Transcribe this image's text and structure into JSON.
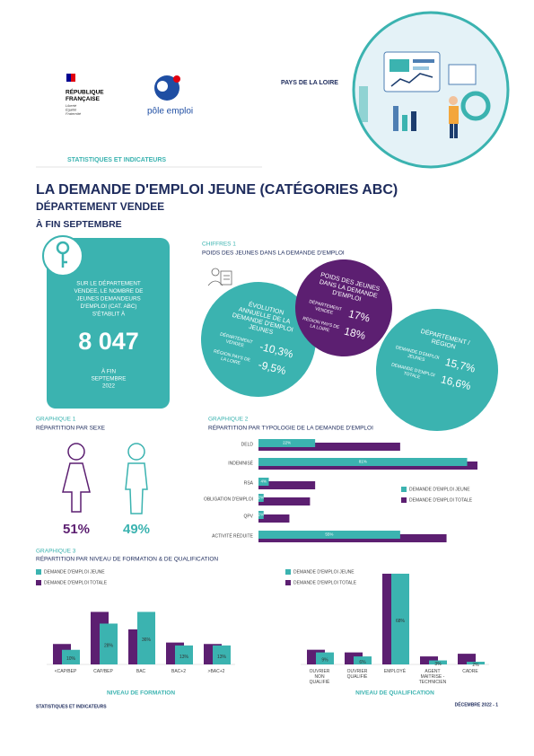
{
  "header": {
    "republique": [
      "RÉPUBLIQUE",
      "FRANÇAISE"
    ],
    "motto": [
      "Liberté",
      "Égalité",
      "Fraternité"
    ],
    "logo": "pôle emploi",
    "region": "PAYS DE LA LOIRE",
    "section": "STATISTIQUES ET INDICATEURS"
  },
  "title": "LA DEMANDE D'EMPLOI JEUNE (CATÉGORIES ABC)",
  "subtitle": "DÉPARTEMENT VENDEE",
  "period": "À FIN SEPTEMBRE",
  "key_figure": {
    "text": [
      "SUR LE DÉPARTEMENT",
      "VENDEE, LE NOMBRE DE",
      "JEUNES DEMANDEURS",
      "D'EMPLOI (CAT. ABC)",
      "S'ÉTABLIT À"
    ],
    "value": "8 047",
    "date": [
      "À FIN",
      "SEPTEMBRE",
      "2022"
    ]
  },
  "chiffres": {
    "label": "CHIFFRES 1",
    "title": "POIDS DES JEUNES DANS LA DEMANDE D'EMPLOI",
    "circles": [
      {
        "title": [
          "ÉVOLUTION",
          "ANNUELLE DE LA",
          "DEMANDE D'EMPLOI",
          "JEUNES"
        ],
        "rows": [
          {
            "label": [
              "DÉPARTEMENT",
              "VENDEE"
            ],
            "value": "-10,3%"
          },
          {
            "label": [
              "RÉGION PAYS DE",
              "LA LOIRE"
            ],
            "value": "-9,5%"
          }
        ]
      },
      {
        "title": [
          "POIDS DES JEUNES",
          "DANS LA DEMANDE",
          "D'EMPLOI"
        ],
        "rows": [
          {
            "label": [
              "DÉPARTEMENT",
              "VENDEE"
            ],
            "value": "17%"
          },
          {
            "label": [
              "RÉGION PAYS DE",
              "LA LOIRE"
            ],
            "value": "18%"
          }
        ]
      },
      {
        "title": [
          "DÉPARTEMENT /",
          "RÉGION"
        ],
        "rows": [
          {
            "label": [
              "DEMANDE D'EMPLOI",
              "JEUNES"
            ],
            "value": "15,7%"
          },
          {
            "label": [
              "DEMANDE D'EMPLOI",
              "TOTALE"
            ],
            "value": "16,6%"
          }
        ]
      }
    ]
  },
  "graph3": {
    "label": "GRAPHIQUE 3",
    "title": "RÉPARTITION PAR NIVEAU DE FORMATION & DE QUALIFICATION"
  },
  "chart_data": [
    {
      "type": "pictogram",
      "label": "GRAPHIQUE 1",
      "title": "RÉPARTITION PAR SEXE",
      "values": [
        51,
        49
      ],
      "value_labels": [
        "51%",
        "49%"
      ],
      "colors": [
        "#5c1f71",
        "#3bb3b0"
      ]
    },
    {
      "type": "bar",
      "orientation": "horizontal",
      "label": "GRAPHIQUE 2",
      "title": "RÉPARTITION PAR TYPOLOGIE DE LA DEMANDE D'EMPLOI",
      "categories": [
        "DELD",
        "INDEMNISÉ",
        "RSA",
        "OBLIGATION D'EMPLOI",
        "QPV",
        "ACTIVITÉ RÉDUITE"
      ],
      "xlim": [
        0,
        85
      ],
      "series": [
        {
          "name": "DEMANDE D'EMPLOI JEUNE",
          "color": "#3bb3b0",
          "values": [
            22,
            81,
            4,
            2,
            2,
            55
          ],
          "value_labels": [
            "22%",
            "81%",
            "4%",
            "2%",
            "2%",
            "55%"
          ]
        },
        {
          "name": "DEMANDE D'EMPLOI TOTALE",
          "color": "#5c1f71",
          "values": [
            55,
            85,
            22,
            20,
            12,
            73
          ]
        }
      ]
    },
    {
      "type": "bar",
      "orientation": "vertical",
      "xlabel": "NIVEAU DE FORMATION",
      "categories": [
        "<CAP/BEP",
        "CAP/BEP",
        "BAC",
        "BAC+2",
        ">BAC+2"
      ],
      "ylim": [
        0,
        40
      ],
      "series": [
        {
          "name": "DEMANDE D'EMPLOI JEUNE",
          "color": "#3bb3b0",
          "values": [
            10,
            28,
            36,
            13,
            13
          ],
          "value_labels": [
            "10%",
            "28%",
            "36%",
            "13%",
            "13%"
          ]
        },
        {
          "name": "DEMANDE D'EMPLOI TOTALE",
          "color": "#5c1f71",
          "values": [
            14,
            36,
            24,
            15,
            14
          ]
        }
      ]
    },
    {
      "type": "bar",
      "orientation": "vertical",
      "xlabel": "NIVEAU DE QUALIFICATION",
      "categories": [
        "OUVRIER NON QUALIFIÉ",
        "OUVRIER QUALIFIÉ",
        "EMPLOYÉ",
        "AGENT MAITRISE - TECHNICIEN",
        "CADRE"
      ],
      "ylim": [
        0,
        70
      ],
      "series": [
        {
          "name": "DEMANDE D'EMPLOI JEUNE",
          "color": "#3bb3b0",
          "values": [
            9,
            6,
            68,
            3,
            2
          ],
          "value_labels": [
            "9%",
            "6%",
            "68%",
            "3%",
            "2%"
          ]
        },
        {
          "name": "DEMANDE D'EMPLOI TOTALE",
          "color": "#5c1f71",
          "values": [
            11,
            9,
            68,
            6,
            8
          ]
        }
      ]
    }
  ],
  "footer": {
    "left": "STATISTIQUES ET INDICATEURS",
    "right": "DÉCEMBRE 2022 - 1"
  }
}
